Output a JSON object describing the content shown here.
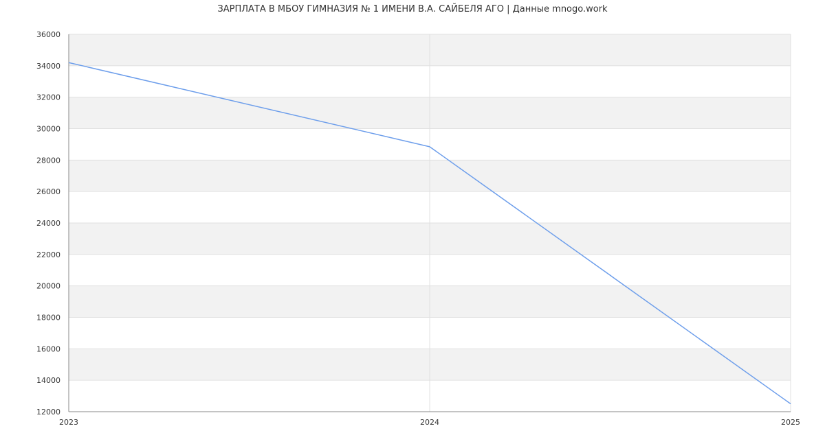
{
  "chart_data": {
    "type": "line",
    "title": "ЗАРПЛАТА В МБОУ ГИМНАЗИЯ № 1 ИМЕНИ В.А. САЙБЕЛЯ АГО | Данные mnogo.work",
    "xlabel": "",
    "ylabel": "",
    "x": [
      "2023",
      "2024",
      "2025"
    ],
    "series": [
      {
        "values": [
          34200,
          28850,
          12500
        ]
      }
    ],
    "ylim": [
      12000,
      36000
    ],
    "y_ticks": [
      "12000",
      "14000",
      "16000",
      "18000",
      "20000",
      "22000",
      "24000",
      "26000",
      "28000",
      "30000",
      "32000",
      "34000",
      "36000"
    ],
    "grid": true,
    "colors": {
      "line": "#6d9eeb",
      "band": "#f2f2f2",
      "grid": "#e0e0e0",
      "axis": "#888888"
    }
  }
}
